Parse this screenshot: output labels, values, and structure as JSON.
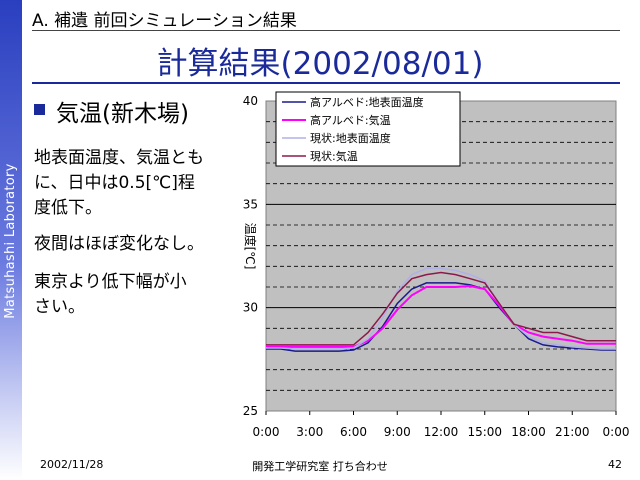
{
  "sidebar": {
    "text": "Matsuhashi Laboratory"
  },
  "header": {
    "section": "A. 補遺 前回シミュレーション結果",
    "title": "計算結果(2002/08/01)"
  },
  "bullet": {
    "heading": "気温(新木場)"
  },
  "body": {
    "p1_line1": "地表面温度、気温とも",
    "p1_line2": "に、日中は0.5[℃]程",
    "p1_line3": "度低下。",
    "p2": "夜間はほぼ変化なし。",
    "p3_line1": "東京より低下幅が小",
    "p3_line2": "さい。"
  },
  "chart_data": {
    "type": "line",
    "title": "",
    "xlabel": "",
    "ylabel": "温度[℃]",
    "ylim": [
      25,
      40
    ],
    "x": [
      "0:00",
      "1:00",
      "2:00",
      "3:00",
      "4:00",
      "5:00",
      "6:00",
      "7:00",
      "8:00",
      "9:00",
      "10:00",
      "11:00",
      "12:00",
      "13:00",
      "14:00",
      "15:00",
      "16:00",
      "17:00",
      "18:00",
      "19:00",
      "20:00",
      "21:00",
      "22:00",
      "23:00",
      "0:00"
    ],
    "xticks": [
      "0:00",
      "3:00",
      "6:00",
      "9:00",
      "12:00",
      "15:00",
      "18:00",
      "21:00",
      "0:00"
    ],
    "yticks": [
      25,
      30,
      35,
      40
    ],
    "legend_position": "top-left",
    "series": [
      {
        "name": "高アルベド:地表面温度",
        "color": "#1a1a8c",
        "values": [
          28.0,
          28.0,
          27.9,
          27.9,
          27.9,
          27.9,
          27.95,
          28.3,
          29.1,
          30.2,
          30.9,
          31.2,
          31.2,
          31.2,
          31.1,
          30.9,
          30.0,
          29.2,
          28.5,
          28.2,
          28.1,
          28.05,
          28.0,
          27.95,
          27.95
        ]
      },
      {
        "name": "高アルベド:気温",
        "color": "#ff00ff",
        "values": [
          28.1,
          28.1,
          28.1,
          28.1,
          28.1,
          28.1,
          28.1,
          28.4,
          29.0,
          29.9,
          30.6,
          31.0,
          31.0,
          31.0,
          31.05,
          30.9,
          30.1,
          29.2,
          28.8,
          28.6,
          28.5,
          28.4,
          28.25,
          28.25,
          28.25
        ]
      },
      {
        "name": "現状:地表面温度",
        "color": "#b0b0e8",
        "values": [
          28.05,
          28.05,
          28.0,
          28.0,
          28.0,
          28.0,
          28.05,
          28.5,
          29.5,
          30.8,
          31.6,
          31.9,
          31.9,
          31.8,
          31.6,
          31.3,
          30.2,
          29.2,
          28.6,
          28.3,
          28.2,
          28.1,
          28.05,
          28.0,
          28.0
        ]
      },
      {
        "name": "現状:気温",
        "color": "#8b1a4a",
        "values": [
          28.2,
          28.2,
          28.2,
          28.2,
          28.2,
          28.2,
          28.2,
          28.8,
          29.7,
          30.7,
          31.4,
          31.6,
          31.7,
          31.6,
          31.4,
          31.2,
          30.2,
          29.2,
          29.0,
          28.8,
          28.8,
          28.6,
          28.4,
          28.4,
          28.4
        ]
      }
    ]
  },
  "footer": {
    "date": "2002/11/28",
    "center": "開発工学研究室 打ち合わせ",
    "page": "42"
  }
}
